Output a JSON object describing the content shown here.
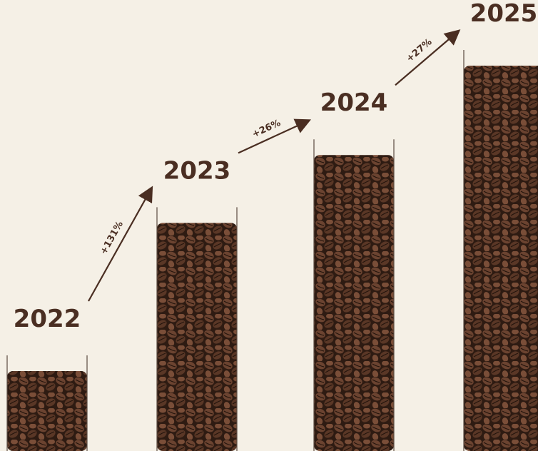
{
  "chart_data": {
    "type": "bar",
    "categories": [
      "2022",
      "2023",
      "2024",
      "2025"
    ],
    "values": [
      100,
      231,
      291,
      370
    ],
    "growth": [
      null,
      131,
      26,
      27
    ],
    "growth_labels": [
      null,
      "+131%",
      "+26%",
      "+27%"
    ],
    "color": "#3b2418"
  }
}
